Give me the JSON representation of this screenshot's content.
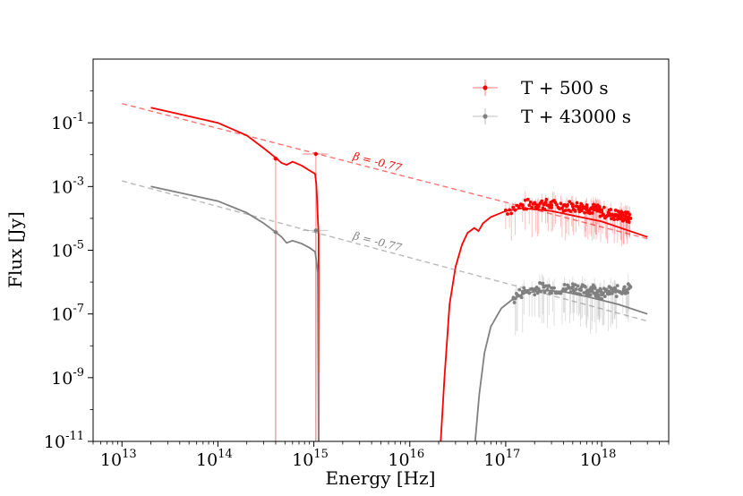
{
  "chart_data": {
    "type": "scatter",
    "title": "",
    "xlabel": "Energy [Hz]",
    "ylabel": "Flux [Jy]",
    "xscale": "log",
    "yscale": "log",
    "xlim": [
      5000000000000.0,
      5e+18
    ],
    "ylim": [
      1e-11,
      10
    ],
    "grid": false,
    "legend_position": "top-right",
    "x_ticks": [
      {
        "base": "10",
        "exp": "13",
        "value": 10000000000000.0
      },
      {
        "base": "10",
        "exp": "14",
        "value": 100000000000000.0
      },
      {
        "base": "10",
        "exp": "15",
        "value": 1000000000000000.0
      },
      {
        "base": "10",
        "exp": "16",
        "value": 1e+16
      },
      {
        "base": "10",
        "exp": "17",
        "value": 1e+17
      },
      {
        "base": "10",
        "exp": "18",
        "value": 1e+18
      }
    ],
    "y_ticks": [
      {
        "base": "10",
        "exp": "-1",
        "value": 0.1
      },
      {
        "base": "10",
        "exp": "-3",
        "value": 0.001
      },
      {
        "base": "10",
        "exp": "-5",
        "value": 1e-05
      },
      {
        "base": "10",
        "exp": "-7",
        "value": 1e-07
      },
      {
        "base": "10",
        "exp": "-9",
        "value": 1e-09
      },
      {
        "base": "10",
        "exp": "-11",
        "value": 1e-11
      }
    ],
    "series": [
      {
        "name": "T + 500 s",
        "color": "#ff0000",
        "powerlaw": {
          "x": [
            10000000000000.0,
            3e+18
          ],
          "y": [
            0.4,
            2.3e-05
          ],
          "label": "β = -0.77"
        },
        "optical_points": [
          {
            "x": 400000000000000.0,
            "y": 0.0075,
            "xerr": [
              370000000000000.0,
              430000000000000.0
            ],
            "ylow": 1e-11
          },
          {
            "x": 1050000000000000.0,
            "y": 0.0105,
            "xerr": [
              760000000000000.0,
              1400000000000000.0
            ],
            "ylow": 1e-11
          }
        ],
        "model": [
          [
            20000000000000.0,
            0.3
          ],
          [
            100000000000000.0,
            0.1
          ],
          [
            200000000000000.0,
            0.04
          ],
          [
            300000000000000.0,
            0.016
          ],
          [
            400000000000000.0,
            0.008
          ],
          [
            460000000000000.0,
            0.0055
          ],
          [
            520000000000000.0,
            0.0048
          ],
          [
            600000000000000.0,
            0.006
          ],
          [
            750000000000000.0,
            0.0045
          ],
          [
            900000000000000.0,
            0.0032
          ],
          [
            1030000000000000.0,
            0.0025
          ],
          [
            1060000000000000.0,
            0.0012
          ],
          [
            1080000000000000.0,
            0.0004
          ],
          [
            1100000000000000.0,
            0.0001
          ],
          [
            1120000000000000.0,
            3e-05
          ],
          [
            1120000000000000.0,
            1e-11
          ]
        ],
        "model_xray": [
          [
            2.1e+16,
            1e-11
          ],
          [
            2.3e+16,
            1e-09
          ],
          [
            2.6e+16,
            2e-07
          ],
          [
            3e+16,
            3e-06
          ],
          [
            3.5e+16,
            1.5e-05
          ],
          [
            4e+16,
            3.5e-05
          ],
          [
            4.7e+16,
            5e-05
          ],
          [
            5.2e+16,
            4e-05
          ],
          [
            5.8e+16,
            7e-05
          ],
          [
            7e+16,
            0.00011
          ],
          [
            1e+17,
            0.00017
          ],
          [
            1.5e+17,
            0.00021
          ],
          [
            3e+17,
            0.00017
          ],
          [
            1e+18,
            8e-05
          ],
          [
            3e+18,
            2.6e-05
          ]
        ],
        "xray_x": [
          1e+17,
          1.5e+17,
          2e+17,
          2.5e+17,
          3e+17,
          4e+17,
          5e+17,
          6e+17,
          7e+17,
          8e+17,
          9e+17,
          1e+18,
          1.2e+18,
          1.4e+18,
          1.6e+18,
          1.8e+18,
          2e+18
        ],
        "xray_y": [
          0.00018,
          0.00025,
          0.0003,
          0.00028,
          0.00026,
          0.00025,
          0.00024,
          0.00023,
          0.00022,
          0.0002,
          0.00018,
          0.00016,
          0.00014,
          0.00013,
          0.00012,
          0.00011,
          0.0001
        ]
      },
      {
        "name": "T + 43000 s",
        "color": "#808080",
        "powerlaw": {
          "x": [
            10000000000000.0,
            3e+18
          ],
          "y": [
            0.0015,
            6e-08
          ],
          "label": "β = -0.77"
        },
        "optical_points": [
          {
            "x": 400000000000000.0,
            "y": 3.7e-05,
            "xerr": [
              370000000000000.0,
              430000000000000.0
            ],
            "ylow": 1e-11
          },
          {
            "x": 1050000000000000.0,
            "y": 4.2e-05,
            "xerr": [
              760000000000000.0,
              1400000000000000.0
            ],
            "ylow": 1e-11
          }
        ],
        "model": [
          [
            20000000000000.0,
            0.001
          ],
          [
            100000000000000.0,
            0.00035
          ],
          [
            200000000000000.0,
            0.00015
          ],
          [
            300000000000000.0,
            7e-05
          ],
          [
            400000000000000.0,
            3.7e-05
          ],
          [
            460000000000000.0,
            2.6e-05
          ],
          [
            520000000000000.0,
            1.7e-05
          ],
          [
            600000000000000.0,
            2e-05
          ],
          [
            750000000000000.0,
            1.6e-05
          ],
          [
            900000000000000.0,
            1.2e-05
          ],
          [
            1030000000000000.0,
            9e-06
          ],
          [
            1060000000000000.0,
            5e-06
          ],
          [
            1100000000000000.0,
            2e-06
          ],
          [
            1120000000000000.0,
            1e-11
          ]
        ],
        "model_xray": [
          [
            4.8e+16,
            1e-11
          ],
          [
            5.3e+16,
            3e-10
          ],
          [
            6e+16,
            6e-09
          ],
          [
            7e+16,
            4e-08
          ],
          [
            9e+16,
            1.5e-07
          ],
          [
            1.2e+17,
            3e-07
          ],
          [
            1.6e+17,
            4.5e-07
          ],
          [
            2.5e+17,
            5.5e-07
          ],
          [
            4e+17,
            5e-07
          ],
          [
            7e+17,
            3.5e-07
          ],
          [
            1.5e+18,
            2e-07
          ],
          [
            3e+18,
            1e-07
          ]
        ],
        "xray_x": [
          1.2e+17,
          1.5e+17,
          2e+17,
          2.5e+17,
          3e+17,
          4e+17,
          5e+17,
          6e+17,
          7e+17,
          8e+17,
          9e+17,
          1e+18,
          1.2e+18,
          1.4e+18,
          1.7e+18,
          2e+18
        ],
        "xray_y": [
          3e-07,
          5e-07,
          6e-07,
          7e-07,
          6.5e-07,
          6e-07,
          7e-07,
          6e-07,
          5e-07,
          6.5e-07,
          5e-07,
          4e-07,
          5e-07,
          5e-07,
          6e-07,
          7e-07
        ]
      }
    ]
  }
}
